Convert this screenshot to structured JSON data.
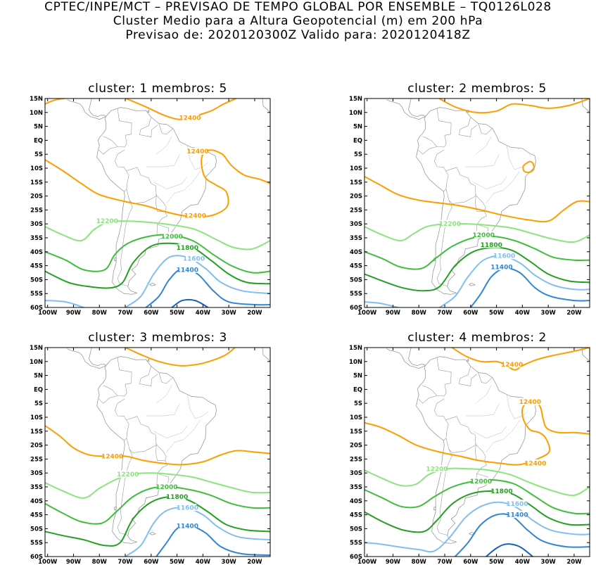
{
  "header": {
    "line1": "CPTEC/INPE/MCT – PREVISAO DE TEMPO GLOBAL POR ENSEMBLE – TQ0126L028",
    "line2": "Cluster Medio para a Altura Geopotencial (m) em 200 hPa",
    "line3": "Previsao de: 2020120300Z   Valido para: 2020120418Z"
  },
  "lat_ticks": [
    "15N",
    "10N",
    "5N",
    "EQ",
    "5S",
    "10S",
    "15S",
    "20S",
    "25S",
    "30S",
    "35S",
    "40S",
    "45S",
    "50S",
    "55S",
    "60S"
  ],
  "lon_ticks": [
    "100W",
    "90W",
    "80W",
    "70W",
    "60W",
    "50W",
    "40W",
    "30W",
    "20W"
  ],
  "colors": {
    "c12400": "#ff9d00",
    "c12200": "#8be57d",
    "c12000": "#3dbe3c",
    "c11800": "#23a022",
    "c11600": "#80bff0",
    "c11400": "#2f86d6",
    "c11200": "#1860b8",
    "coast": "#9a9a9a"
  },
  "panels": [
    {
      "title": "cluster: 1   membros: 5",
      "labels": {
        "l12400a": "12400",
        "l12400b": "12400",
        "l12400c": "12400",
        "l12200": "12200",
        "l12000": "12000",
        "l11800": "11800",
        "l11600": "11600",
        "l11400": "11400"
      }
    },
    {
      "title": "cluster: 2   membros: 5",
      "labels": {
        "l12200": "12200",
        "l12000": "12000",
        "l11800": "11800",
        "l11600": "11600",
        "l11400": "11400"
      }
    },
    {
      "title": "cluster: 3   membros: 3",
      "labels": {
        "l12400": "12400",
        "l12200": "12200",
        "l12000": "12000",
        "l11800": "11800",
        "l11600": "11600",
        "l11400": "11400"
      }
    },
    {
      "title": "cluster: 4   membros: 2",
      "labels": {
        "l12400a": "12400",
        "l12400b": "12400",
        "l12400c": "12400",
        "l12200": "12200",
        "l12000": "12000",
        "l11800": "11800",
        "l11600": "11600",
        "l11400": "11400"
      }
    }
  ]
}
